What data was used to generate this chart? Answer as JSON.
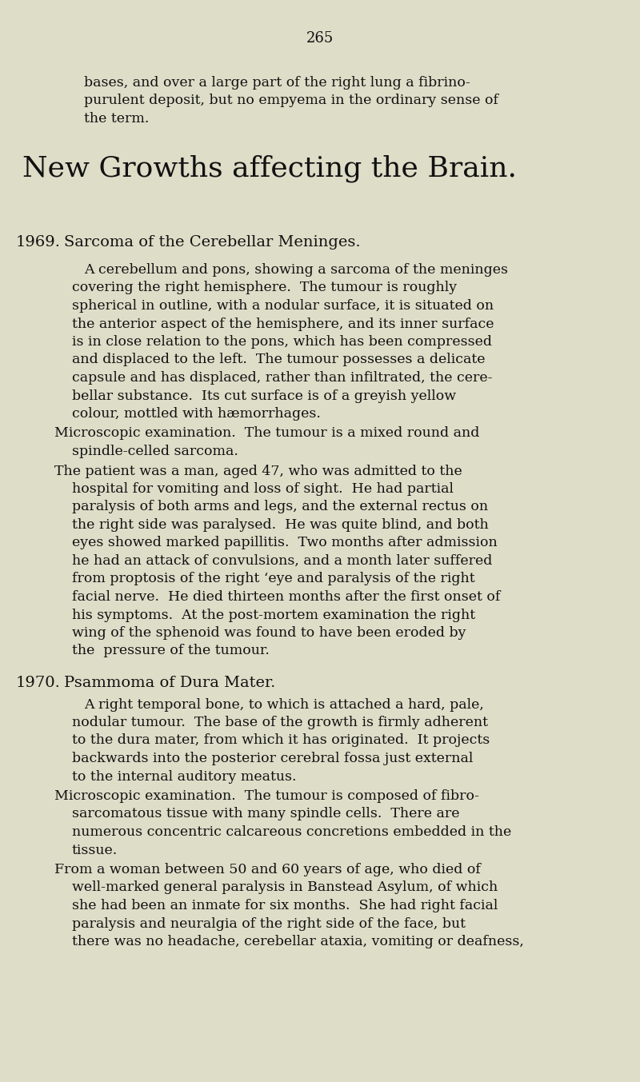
{
  "background_color": "#ddddc8",
  "page_number": "265",
  "title": "New Growths affecting the Brain.",
  "text_color": "#111111",
  "figsize": [
    8.0,
    13.53
  ],
  "dpi": 100,
  "intro_lines": [
    "bases, and over a large part of the right lung a fibrino-",
    "purulent deposit, but no empyema in the ordinary sense of",
    "the term."
  ],
  "section1_num": "1969.",
  "section1_head": "Sarcoma of the Cerebellar Meninges.",
  "para1_lines": [
    "A cerebellum and pons, showing a sarcoma of the meninges",
    "covering the right hemisphere.  The tumour is roughly",
    "spherical in outline, with a nodular surface, it is situated on",
    "the anterior aspect of the hemisphere, and its inner surface",
    "is in close relation to the pons, which has been compressed",
    "and displaced to the left.  The tumour possesses a delicate",
    "capsule and has displaced, rather than infiltrated, the cere-",
    "bellar substance.  Its cut surface is of a greyish yellow",
    "colour, mottled with hæmorrhages."
  ],
  "micro1_lines": [
    "Microscopic examination.  The tumour is a mixed round and",
    "spindle-celled sarcoma."
  ],
  "patient_lines": [
    "The patient was a man, aged 47, who was admitted to the",
    "hospital for vomiting and loss of sight.  He had partial",
    "paralysis of both arms and legs, and the external rectus on",
    "the right side was paralysed.  He was quite blind, and both",
    "eyes showed marked papillitis.  Two months after admission",
    "he had an attack of convulsions, and a month later suffered",
    "from proptosis of the right ‘eye and paralysis of the right",
    "facial nerve.  He died thirteen months after the first onset of",
    "his symptoms.  At the post-mortem examination the right",
    "wing of the sphenoid was found to have been eroded by",
    "the  pressure of the tumour."
  ],
  "section2_num": "1970.",
  "section2_head": "Psammoma of Dura Mater.",
  "para2_lines": [
    "A right temporal bone, to which is attached a hard, pale,",
    "nodular tumour.  The base of the growth is firmly adherent",
    "to the dura mater, from which it has originated.  It projects",
    "backwards into the posterior cerebral fossa just external",
    "to the internal auditory meatus."
  ],
  "micro2_lines": [
    "Microscopic examination.  The tumour is composed of fibro-",
    "sarcomatous tissue with many spindle cells.  There are",
    "numerous concentric calcareous concretions embedded in the",
    "tissue."
  ],
  "woman_lines": [
    "From a woman between 50 and 60 years of age, who died of",
    "well-marked general paralysis in Banstead Asylum, of which",
    "she had been an inmate for six months.  She had right facial",
    "paralysis and neuralgia of the right side of the face, but",
    "there was no headache, cerebellar ataxia, vomiting or deafness,"
  ]
}
